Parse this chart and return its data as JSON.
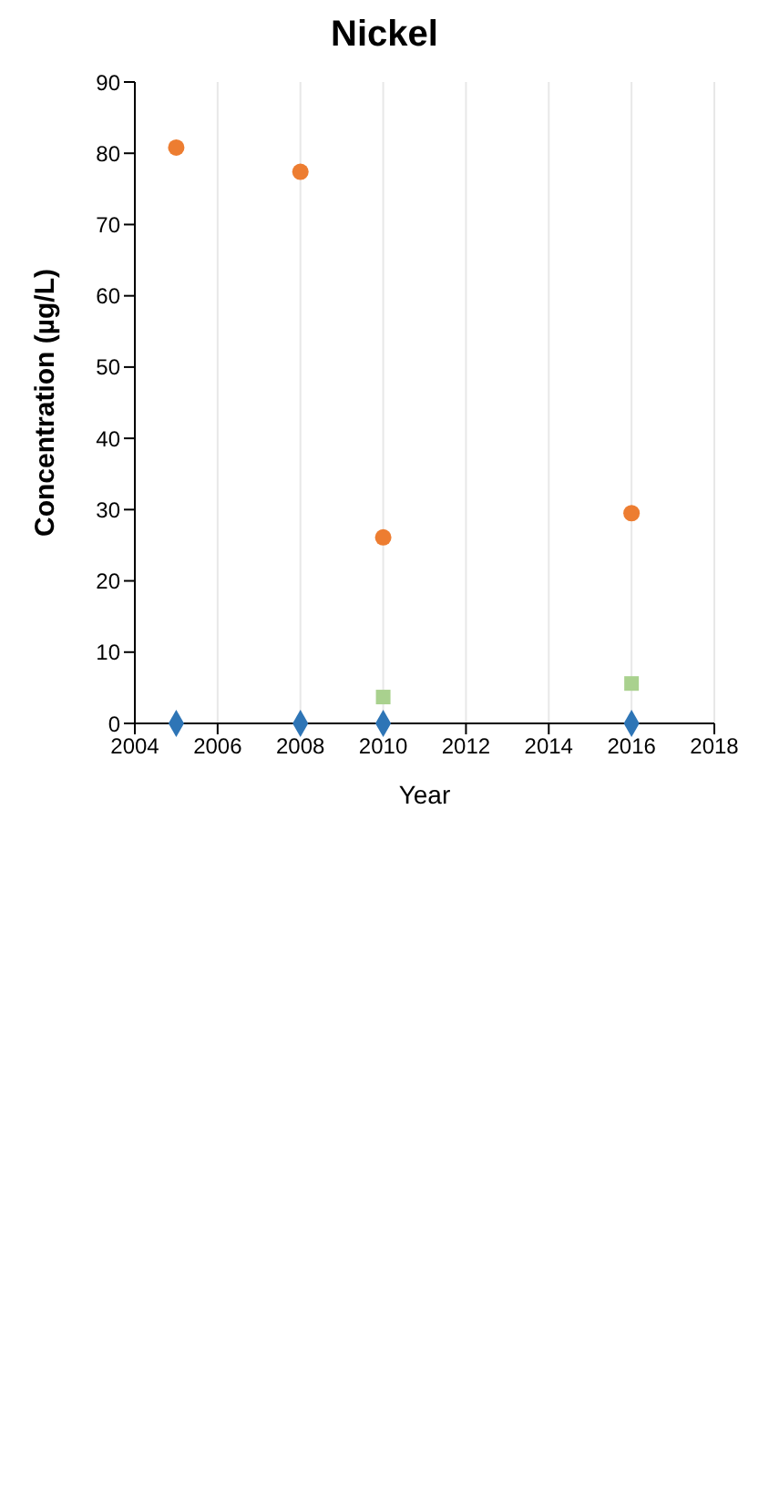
{
  "chart_data": {
    "type": "scatter",
    "title": "Nickel",
    "xlabel": "Year",
    "ylabel": "Concentration (µg/L)",
    "x": [
      2005,
      2008,
      2010,
      2016
    ],
    "series": [
      {
        "color": "#2e75b6",
        "marker": "diamond",
        "values": [
          0,
          0,
          0,
          0
        ]
      },
      {
        "color": "#ed7d31",
        "marker": "circle",
        "values": [
          80.8,
          77.4,
          26.1,
          29.5
        ]
      },
      {
        "color": "#a9d18e",
        "marker": "square",
        "values": [
          null,
          null,
          3.7,
          5.6
        ]
      }
    ],
    "xlim": [
      2004,
      2018
    ],
    "xticks": [
      2004,
      2006,
      2008,
      2010,
      2012,
      2014,
      2016,
      2018
    ],
    "ylim": [
      0,
      90
    ],
    "yticks": [
      0,
      10,
      20,
      30,
      40,
      50,
      60,
      70,
      80,
      90
    ],
    "grid": "x",
    "legend": false
  }
}
